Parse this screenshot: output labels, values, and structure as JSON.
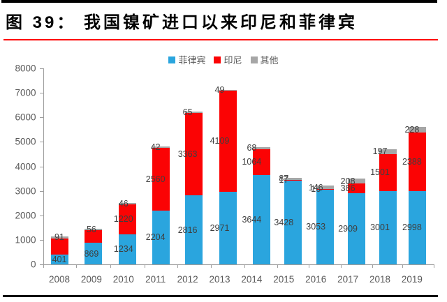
{
  "title": "图 39：  我国镍矿进口以来印尼和菲律宾",
  "colors": {
    "philippines": "#2aa5de",
    "indonesia": "#fb0304",
    "other": "#a6a6a6",
    "label_text": "#3f3f3f",
    "axis_text": "#595959",
    "title_underline": "#fe0000",
    "frame": "#000000"
  },
  "legend": [
    {
      "label": "菲律宾",
      "color_key": "philippines"
    },
    {
      "label": "印尼",
      "color_key": "indonesia"
    },
    {
      "label": "其他",
      "color_key": "other"
    }
  ],
  "chart_data": {
    "type": "bar",
    "stacked": true,
    "title": "图 39：  我国镍矿进口以来印尼和菲律宾",
    "categories": [
      "2008",
      "2009",
      "2010",
      "2011",
      "2012",
      "2013",
      "2014",
      "2015",
      "2016",
      "2017",
      "2018",
      "2019"
    ],
    "series": [
      {
        "name": "菲律宾",
        "color_key": "philippines",
        "values": [
          401,
          869,
          1234,
          2204,
          2816,
          2971,
          3644,
          3428,
          3053,
          2909,
          3001,
          2998
        ],
        "labels": [
          "401",
          "869",
          "1234",
          "2204",
          "2816",
          "2971",
          "3644",
          "3428",
          "3053",
          "2909",
          "3001",
          "2998"
        ]
      },
      {
        "name": "印尼",
        "color_key": "indonesia",
        "values": [
          650,
          530,
          1220,
          2560,
          3363,
          4109,
          1064,
          17,
          16,
          386,
          1501,
          2388
        ],
        "labels": [
          "",
          "",
          "1220",
          "2560",
          "3363",
          "4109",
          "1064",
          "17",
          "16",
          "386",
          "1501",
          "2388"
        ]
      },
      {
        "name": "其他",
        "color_key": "other",
        "values": [
          91,
          56,
          46,
          42,
          65,
          49,
          68,
          87,
          146,
          208,
          197,
          228
        ],
        "labels": [
          "91",
          "56",
          "46",
          "42",
          "65",
          "49",
          "68",
          "87",
          "146",
          "208",
          "197",
          "228"
        ]
      }
    ],
    "ylim": [
      0,
      8000
    ],
    "ytick_step": 1000,
    "grid": false,
    "legend_position": "top"
  }
}
